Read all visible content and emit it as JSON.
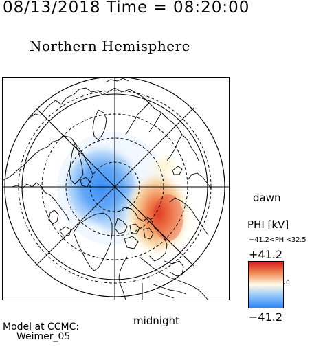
{
  "header": {
    "timestamp": "08/13/2018 Time = 08:20:00",
    "hemisphere": "Northern Hemisphere"
  },
  "map": {
    "orientation_labels": {
      "right": "dawn",
      "bottom": "midnight"
    },
    "projection": "polar stereographic, north pole centered",
    "features": [
      "coastlines",
      "latitude-circles",
      "longitude-meridians",
      "potential-contours"
    ]
  },
  "colorbar": {
    "title": "PHI [kV]",
    "range_text": "−41.2<PHI<32.5",
    "max_label": "+41.2",
    "min_label": "−41.2",
    "zero_label": "0",
    "colors": {
      "positive": "#d7191c",
      "mid": "#fffbe6",
      "negative": "#2b83f6"
    }
  },
  "attribution": {
    "line1": "Model at CCMC:",
    "line2": "Weimer_05"
  }
}
